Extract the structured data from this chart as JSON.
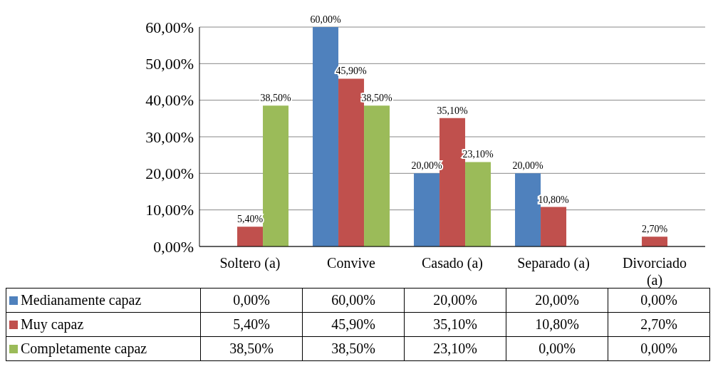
{
  "chart_data": {
    "type": "bar",
    "categories": [
      "Soltero (a)",
      "Convive",
      "Casado (a)",
      "Separado (a)",
      "Divorciado (a)"
    ],
    "series": [
      {
        "name": "Medianamente capaz",
        "color": "#4f81bd",
        "values": [
          0,
          60,
          20,
          20,
          0
        ],
        "value_labels": [
          "0,00%",
          "60,00%",
          "20,00%",
          "20,00%",
          "0,00%"
        ]
      },
      {
        "name": "Muy capaz",
        "color": "#c0504d",
        "values": [
          5.4,
          45.9,
          35.1,
          10.8,
          2.7
        ],
        "value_labels": [
          "5,40%",
          "45,90%",
          "35,10%",
          "10,80%",
          "2,70%"
        ]
      },
      {
        "name": "Completamente capaz",
        "color": "#9bbb59",
        "values": [
          38.5,
          38.5,
          23.1,
          0,
          0
        ],
        "value_labels": [
          "38,50%",
          "38,50%",
          "23,10%",
          "0,00%",
          "0,00%"
        ]
      }
    ],
    "ylim": [
      0,
      60
    ],
    "yticks": [
      {
        "value": 0,
        "label": "0,00%"
      },
      {
        "value": 10,
        "label": "10,00%"
      },
      {
        "value": 20,
        "label": "20,00%"
      },
      {
        "value": 30,
        "label": "30,00%"
      },
      {
        "value": 40,
        "label": "40,00%"
      },
      {
        "value": 50,
        "label": "50,00%"
      },
      {
        "value": 60,
        "label": "60,00%"
      }
    ],
    "grid": "y",
    "legend": "bottom"
  }
}
